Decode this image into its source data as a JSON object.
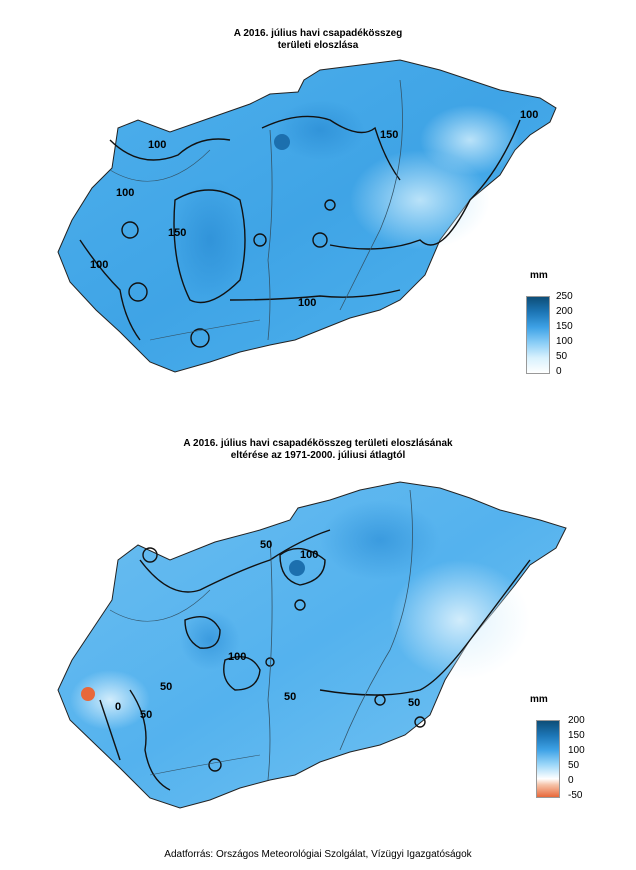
{
  "map1": {
    "title_line1": "A 2016. július havi csapadékösszeg",
    "title_line2": "területi eloszlása",
    "legend_unit": "mm",
    "legend_ticks": [
      "250",
      "200",
      "150",
      "100",
      "50",
      "0"
    ],
    "contour_labels": [
      "100",
      "100",
      "150",
      "100",
      "150",
      "100",
      "100"
    ]
  },
  "map2": {
    "title_line1": "A 2016. július havi csapadékösszeg területi eloszlásának",
    "title_line2": "eltérése az 1971-2000. júliusi átlagtól",
    "legend_unit": "mm",
    "legend_ticks": [
      "200",
      "150",
      "100",
      "50",
      "0",
      "-50"
    ],
    "contour_labels": [
      "50",
      "100",
      "100",
      "50",
      "0",
      "50",
      "50",
      "50"
    ]
  },
  "source": "Adatforrás: Országos Meteorológiai Szolgálat, Vízügyi Igazgatóságok",
  "colors": {
    "dark": "#0d4e78",
    "mid": "#3399dd",
    "light": "#a9dcf8",
    "very_light": "#e4f5fd",
    "negative": "#e8683a"
  }
}
